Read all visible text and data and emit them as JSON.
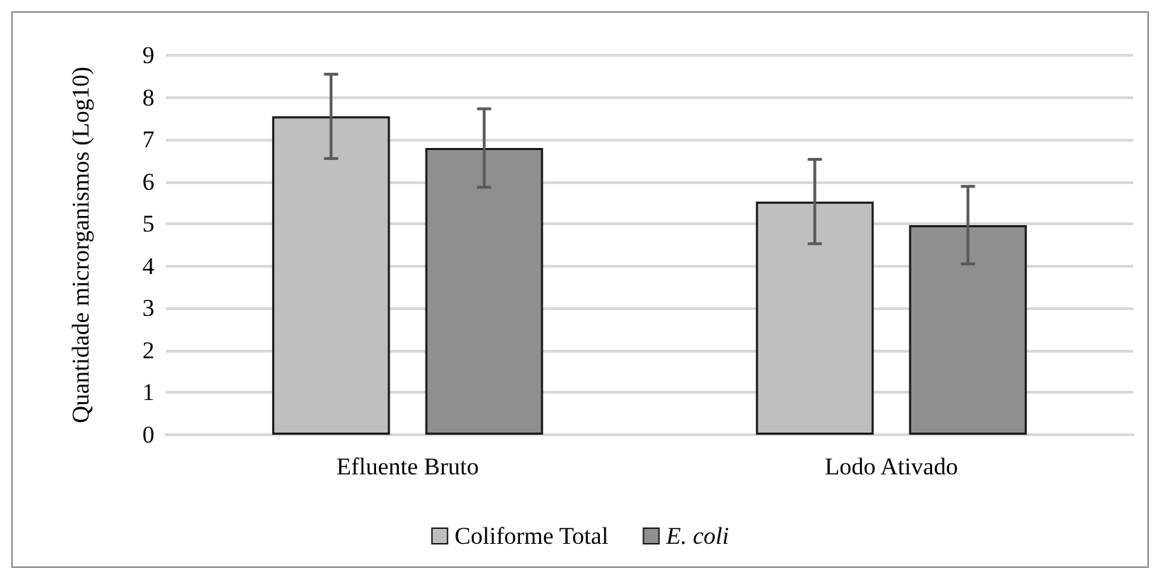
{
  "chart_data": {
    "type": "bar",
    "ylabel": "Quantidade microrganismos (Log10)",
    "categories": [
      "Efluente Bruto",
      "Lodo Ativado"
    ],
    "series": [
      {
        "name": "Coliforme Total",
        "color": "#bfbfbf",
        "values": [
          7.55,
          5.53
        ],
        "errors": [
          1.0,
          1.0
        ]
      },
      {
        "name": "E. coli",
        "color": "#8f8f8f",
        "values": [
          6.8,
          4.97
        ],
        "errors": [
          0.93,
          0.92
        ]
      }
    ],
    "ylim": [
      0,
      9
    ],
    "yticks": [
      0,
      1,
      2,
      3,
      4,
      5,
      6,
      7,
      8,
      9
    ],
    "grid": "y",
    "legend": "bottom"
  }
}
